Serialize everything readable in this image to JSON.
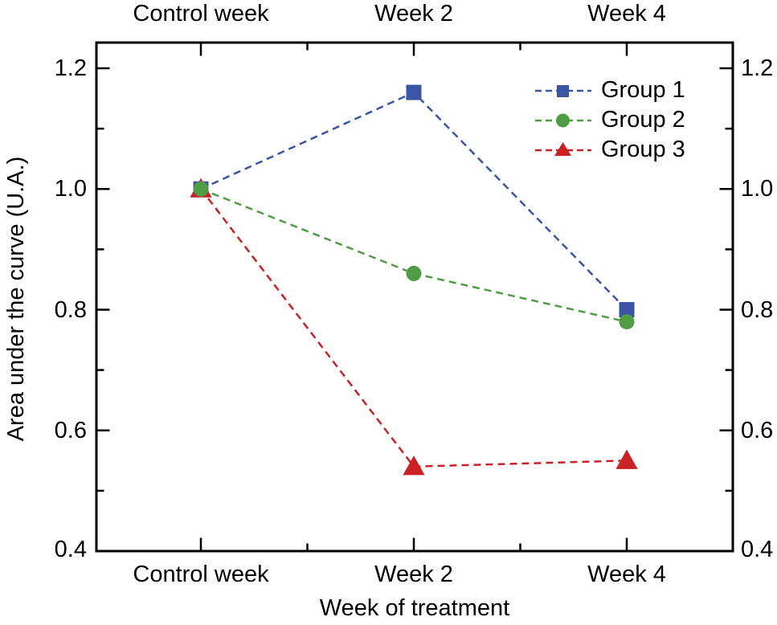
{
  "chart_data": {
    "type": "line",
    "categories": [
      "Control week",
      "Week 2",
      "Week 4"
    ],
    "series": [
      {
        "name": "Group 1",
        "marker": "square",
        "color": "#3B54A4",
        "values": [
          1.0,
          1.16,
          0.8
        ]
      },
      {
        "name": "Group 2",
        "marker": "circle",
        "color": "#4F9C44",
        "values": [
          1.0,
          0.86,
          0.78
        ]
      },
      {
        "name": "Group 3",
        "marker": "triangle",
        "color": "#C82227",
        "values": [
          1.0,
          0.54,
          0.55
        ]
      }
    ],
    "xlabel": "Week of treatment",
    "ylabel": "Area under the curve (U.A.)",
    "ytick_labels": [
      "1.2",
      "1.0",
      "0.8",
      "0.6",
      "0.4"
    ],
    "yticks_major": [
      1.2,
      1.0,
      0.8,
      0.6,
      0.4
    ],
    "yticks_minor": [
      1.1,
      0.9,
      0.7,
      0.5
    ],
    "ylim": [
      0.4,
      1.243
    ],
    "line_style": "dashed",
    "grid": false,
    "legend_position": "upper-right",
    "duplicate_axes": true,
    "axis_color": "#000000",
    "background_color": "#ffffff"
  }
}
